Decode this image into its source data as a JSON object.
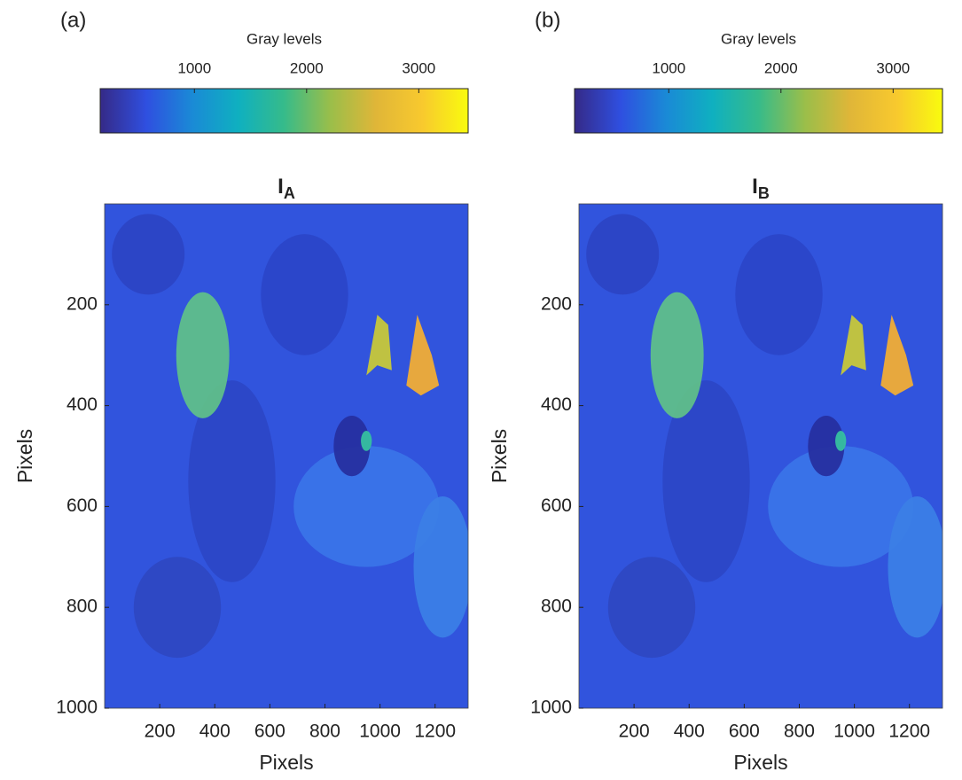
{
  "chart_data": [
    {
      "type": "image",
      "panel_label": "(a)",
      "title": {
        "text": "I",
        "subscript": "A"
      },
      "xlabel": "Pixels",
      "ylabel": "Pixels",
      "xlim": [
        0,
        1320
      ],
      "ylim": [
        0,
        1000
      ],
      "xticks": [
        200,
        400,
        600,
        800,
        1000,
        1200
      ],
      "yticks": [
        200,
        400,
        600,
        800,
        1000
      ],
      "colorbar": {
        "label": "Gray levels",
        "lim": [
          160,
          3440
        ],
        "ticks": [
          1000,
          2000,
          3000
        ],
        "colormap": [
          "#352a87",
          "#2f4fe0",
          "#1a8ad6",
          "#0fb0c0",
          "#36bb8a",
          "#9abe4a",
          "#e0b638",
          "#f8c92e",
          "#f9fb0e"
        ]
      }
    },
    {
      "type": "image",
      "panel_label": "(b)",
      "title": {
        "text": "I",
        "subscript": "B"
      },
      "xlabel": "Pixels",
      "ylabel": "Pixels",
      "xlim": [
        0,
        1320
      ],
      "ylim": [
        0,
        1000
      ],
      "xticks": [
        200,
        400,
        600,
        800,
        1000,
        1200
      ],
      "yticks": [
        200,
        400,
        600,
        800,
        1000
      ],
      "colorbar": {
        "label": "Gray levels",
        "lim": [
          160,
          3440
        ],
        "ticks": [
          1000,
          2000,
          3000
        ],
        "colormap": [
          "#352a87",
          "#2f4fe0",
          "#1a8ad6",
          "#0fb0c0",
          "#36bb8a",
          "#9abe4a",
          "#e0b638",
          "#f8c92e",
          "#f9fb0e"
        ]
      }
    }
  ]
}
